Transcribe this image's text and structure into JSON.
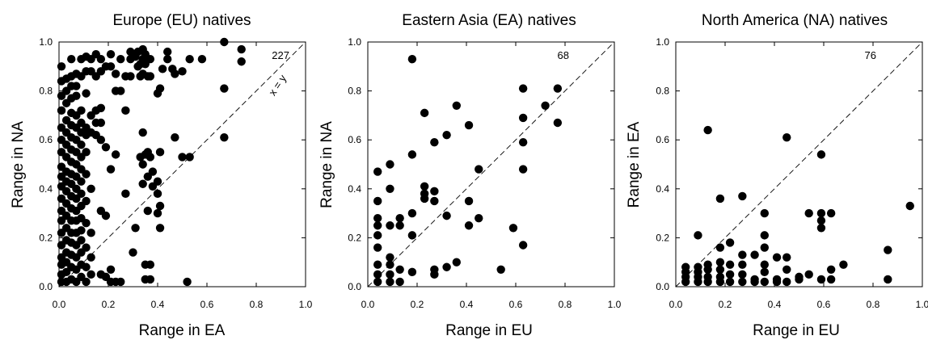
{
  "chart_data": [
    {
      "type": "scatter",
      "title": "Europe (EU) natives",
      "xlabel": "Range in EA",
      "ylabel": "Range in NA",
      "xlim": [
        0,
        1
      ],
      "ylim": [
        0,
        1
      ],
      "xticks": [
        "0.0",
        "0.2",
        "0.4",
        "0.6",
        "0.8",
        "1.0"
      ],
      "yticks": [
        "0.0",
        "0.2",
        "0.4",
        "0.6",
        "0.8",
        "1.0"
      ],
      "grid": false,
      "reference_line": "x = y",
      "reference_label": "x = y",
      "count_label": "227",
      "points": [
        [
          0.01,
          0.02
        ],
        [
          0.01,
          0.05
        ],
        [
          0.01,
          0.09
        ],
        [
          0.01,
          0.12
        ],
        [
          0.01,
          0.17
        ],
        [
          0.01,
          0.22
        ],
        [
          0.01,
          0.27
        ],
        [
          0.01,
          0.31
        ],
        [
          0.01,
          0.36
        ],
        [
          0.01,
          0.41
        ],
        [
          0.01,
          0.45
        ],
        [
          0.01,
          0.49
        ],
        [
          0.01,
          0.55
        ],
        [
          0.01,
          0.6
        ],
        [
          0.01,
          0.65
        ],
        [
          0.01,
          0.72
        ],
        [
          0.01,
          0.78
        ],
        [
          0.01,
          0.84
        ],
        [
          0.01,
          0.9
        ],
        [
          0.03,
          0.02
        ],
        [
          0.03,
          0.06
        ],
        [
          0.03,
          0.1
        ],
        [
          0.03,
          0.14
        ],
        [
          0.03,
          0.19
        ],
        [
          0.03,
          0.24
        ],
        [
          0.03,
          0.29
        ],
        [
          0.03,
          0.34
        ],
        [
          0.03,
          0.39
        ],
        [
          0.03,
          0.43
        ],
        [
          0.03,
          0.47
        ],
        [
          0.03,
          0.53
        ],
        [
          0.03,
          0.58
        ],
        [
          0.03,
          0.63
        ],
        [
          0.03,
          0.68
        ],
        [
          0.03,
          0.75
        ],
        [
          0.03,
          0.8
        ],
        [
          0.03,
          0.85
        ],
        [
          0.05,
          0.03
        ],
        [
          0.05,
          0.08
        ],
        [
          0.05,
          0.13
        ],
        [
          0.05,
          0.18
        ],
        [
          0.05,
          0.22
        ],
        [
          0.05,
          0.27
        ],
        [
          0.05,
          0.32
        ],
        [
          0.05,
          0.37
        ],
        [
          0.05,
          0.42
        ],
        [
          0.05,
          0.46
        ],
        [
          0.05,
          0.51
        ],
        [
          0.05,
          0.56
        ],
        [
          0.05,
          0.61
        ],
        [
          0.05,
          0.66
        ],
        [
          0.05,
          0.71
        ],
        [
          0.05,
          0.77
        ],
        [
          0.05,
          0.82
        ],
        [
          0.05,
          0.86
        ],
        [
          0.05,
          0.93
        ],
        [
          0.07,
          0.02
        ],
        [
          0.07,
          0.07
        ],
        [
          0.07,
          0.12
        ],
        [
          0.07,
          0.17
        ],
        [
          0.07,
          0.22
        ],
        [
          0.07,
          0.27
        ],
        [
          0.07,
          0.31
        ],
        [
          0.07,
          0.36
        ],
        [
          0.07,
          0.4
        ],
        [
          0.07,
          0.45
        ],
        [
          0.07,
          0.5
        ],
        [
          0.07,
          0.55
        ],
        [
          0.07,
          0.6
        ],
        [
          0.07,
          0.65
        ],
        [
          0.07,
          0.7
        ],
        [
          0.07,
          0.78
        ],
        [
          0.07,
          0.82
        ],
        [
          0.07,
          0.87
        ],
        [
          0.09,
          0.04
        ],
        [
          0.09,
          0.09
        ],
        [
          0.09,
          0.14
        ],
        [
          0.09,
          0.19
        ],
        [
          0.09,
          0.23
        ],
        [
          0.09,
          0.28
        ],
        [
          0.09,
          0.33
        ],
        [
          0.09,
          0.38
        ],
        [
          0.09,
          0.43
        ],
        [
          0.09,
          0.48
        ],
        [
          0.09,
          0.53
        ],
        [
          0.09,
          0.58
        ],
        [
          0.09,
          0.63
        ],
        [
          0.09,
          0.67
        ],
        [
          0.09,
          0.72
        ],
        [
          0.09,
          0.86
        ],
        [
          0.09,
          0.93
        ],
        [
          0.11,
          0.02
        ],
        [
          0.11,
          0.08
        ],
        [
          0.11,
          0.16
        ],
        [
          0.11,
          0.26
        ],
        [
          0.11,
          0.35
        ],
        [
          0.11,
          0.46
        ],
        [
          0.11,
          0.55
        ],
        [
          0.11,
          0.62
        ],
        [
          0.11,
          0.65
        ],
        [
          0.11,
          0.79
        ],
        [
          0.11,
          0.88
        ],
        [
          0.11,
          0.94
        ],
        [
          0.13,
          0.05
        ],
        [
          0.13,
          0.12
        ],
        [
          0.13,
          0.22
        ],
        [
          0.13,
          0.4
        ],
        [
          0.13,
          0.63
        ],
        [
          0.13,
          0.7
        ],
        [
          0.13,
          0.88
        ],
        [
          0.13,
          0.93
        ],
        [
          0.15,
          0.62
        ],
        [
          0.15,
          0.67
        ],
        [
          0.15,
          0.72
        ],
        [
          0.15,
          0.86
        ],
        [
          0.15,
          0.95
        ],
        [
          0.17,
          0.05
        ],
        [
          0.17,
          0.31
        ],
        [
          0.17,
          0.6
        ],
        [
          0.17,
          0.67
        ],
        [
          0.17,
          0.73
        ],
        [
          0.17,
          0.88
        ],
        [
          0.17,
          0.93
        ],
        [
          0.19,
          0.04
        ],
        [
          0.19,
          0.29
        ],
        [
          0.19,
          0.57
        ],
        [
          0.19,
          0.9
        ],
        [
          0.21,
          0.02
        ],
        [
          0.21,
          0.07
        ],
        [
          0.21,
          0.48
        ],
        [
          0.21,
          0.9
        ],
        [
          0.21,
          0.95
        ],
        [
          0.23,
          0.02
        ],
        [
          0.23,
          0.54
        ],
        [
          0.23,
          0.8
        ],
        [
          0.23,
          0.87
        ],
        [
          0.25,
          0.02
        ],
        [
          0.25,
          0.8
        ],
        [
          0.25,
          0.93
        ],
        [
          0.27,
          0.38
        ],
        [
          0.27,
          0.72
        ],
        [
          0.27,
          0.86
        ],
        [
          0.29,
          0.86
        ],
        [
          0.29,
          0.93
        ],
        [
          0.29,
          0.96
        ],
        [
          0.3,
          0.14
        ],
        [
          0.31,
          0.24
        ],
        [
          0.31,
          0.94
        ],
        [
          0.32,
          0.9
        ],
        [
          0.32,
          0.96
        ],
        [
          0.33,
          0.53
        ],
        [
          0.33,
          0.86
        ],
        [
          0.33,
          0.91
        ],
        [
          0.34,
          0.42
        ],
        [
          0.34,
          0.5
        ],
        [
          0.34,
          0.63
        ],
        [
          0.34,
          0.87
        ],
        [
          0.34,
          0.93
        ],
        [
          0.34,
          0.97
        ],
        [
          0.35,
          0.03
        ],
        [
          0.35,
          0.09
        ],
        [
          0.35,
          0.54
        ],
        [
          0.35,
          0.91
        ],
        [
          0.35,
          0.95
        ],
        [
          0.36,
          0.31
        ],
        [
          0.36,
          0.45
        ],
        [
          0.36,
          0.55
        ],
        [
          0.36,
          0.86
        ],
        [
          0.37,
          0.03
        ],
        [
          0.37,
          0.09
        ],
        [
          0.37,
          0.53
        ],
        [
          0.37,
          0.86
        ],
        [
          0.37,
          0.93
        ],
        [
          0.38,
          0.41
        ],
        [
          0.38,
          0.47
        ],
        [
          0.4,
          0.3
        ],
        [
          0.4,
          0.38
        ],
        [
          0.4,
          0.43
        ],
        [
          0.4,
          0.79
        ],
        [
          0.41,
          0.24
        ],
        [
          0.41,
          0.33
        ],
        [
          0.41,
          0.55
        ],
        [
          0.41,
          0.81
        ],
        [
          0.42,
          0.89
        ],
        [
          0.44,
          0.93
        ],
        [
          0.44,
          0.96
        ],
        [
          0.46,
          0.89
        ],
        [
          0.47,
          0.61
        ],
        [
          0.47,
          0.87
        ],
        [
          0.5,
          0.53
        ],
        [
          0.5,
          0.88
        ],
        [
          0.52,
          0.02
        ],
        [
          0.53,
          0.53
        ],
        [
          0.53,
          0.93
        ],
        [
          0.58,
          0.93
        ],
        [
          0.67,
          1.0
        ],
        [
          0.67,
          0.81
        ],
        [
          0.67,
          0.61
        ],
        [
          0.74,
          0.97
        ],
        [
          0.74,
          0.92
        ]
      ]
    },
    {
      "type": "scatter",
      "title": "Eastern Asia (EA) natives",
      "xlabel": "Range in EU",
      "ylabel": "Range in NA",
      "xlim": [
        0,
        1
      ],
      "ylim": [
        0,
        1
      ],
      "xticks": [
        "0.0",
        "0.2",
        "0.4",
        "0.6",
        "0.8",
        "1.0"
      ],
      "yticks": [
        "0.0",
        "0.2",
        "0.4",
        "0.6",
        "0.8",
        "1.0"
      ],
      "grid": false,
      "reference_line": "x = y",
      "count_label": "68",
      "points": [
        [
          0.04,
          0.02
        ],
        [
          0.04,
          0.05
        ],
        [
          0.04,
          0.09
        ],
        [
          0.04,
          0.16
        ],
        [
          0.04,
          0.21
        ],
        [
          0.04,
          0.25
        ],
        [
          0.04,
          0.28
        ],
        [
          0.04,
          0.35
        ],
        [
          0.04,
          0.47
        ],
        [
          0.09,
          0.02
        ],
        [
          0.09,
          0.05
        ],
        [
          0.09,
          0.09
        ],
        [
          0.09,
          0.12
        ],
        [
          0.09,
          0.25
        ],
        [
          0.09,
          0.4
        ],
        [
          0.09,
          0.5
        ],
        [
          0.13,
          0.02
        ],
        [
          0.13,
          0.07
        ],
        [
          0.13,
          0.25
        ],
        [
          0.13,
          0.28
        ],
        [
          0.18,
          0.06
        ],
        [
          0.18,
          0.21
        ],
        [
          0.18,
          0.3
        ],
        [
          0.18,
          0.54
        ],
        [
          0.18,
          0.93
        ],
        [
          0.23,
          0.36
        ],
        [
          0.23,
          0.38
        ],
        [
          0.23,
          0.41
        ],
        [
          0.23,
          0.71
        ],
        [
          0.27,
          0.05
        ],
        [
          0.27,
          0.07
        ],
        [
          0.27,
          0.35
        ],
        [
          0.27,
          0.39
        ],
        [
          0.27,
          0.59
        ],
        [
          0.32,
          0.08
        ],
        [
          0.32,
          0.29
        ],
        [
          0.32,
          0.62
        ],
        [
          0.36,
          0.1
        ],
        [
          0.36,
          0.74
        ],
        [
          0.41,
          0.25
        ],
        [
          0.41,
          0.35
        ],
        [
          0.41,
          0.66
        ],
        [
          0.45,
          0.28
        ],
        [
          0.45,
          0.48
        ],
        [
          0.54,
          0.07
        ],
        [
          0.59,
          0.24
        ],
        [
          0.63,
          0.17
        ],
        [
          0.63,
          0.48
        ],
        [
          0.63,
          0.59
        ],
        [
          0.63,
          0.69
        ],
        [
          0.63,
          0.81
        ],
        [
          0.72,
          0.74
        ],
        [
          0.77,
          0.67
        ],
        [
          0.77,
          0.81
        ]
      ]
    },
    {
      "type": "scatter",
      "title": "North America (NA) natives",
      "xlabel": "Range in EU",
      "ylabel": "Range in EA",
      "xlim": [
        0,
        1
      ],
      "ylim": [
        0,
        1
      ],
      "xticks": [
        "0.0",
        "0.2",
        "0.4",
        "0.6",
        "0.8",
        "1.0"
      ],
      "yticks": [
        "0.0",
        "0.2",
        "0.4",
        "0.6",
        "0.8",
        "1.0"
      ],
      "grid": false,
      "reference_line": "x = y",
      "count_label": "76",
      "points": [
        [
          0.04,
          0.02
        ],
        [
          0.04,
          0.04
        ],
        [
          0.04,
          0.06
        ],
        [
          0.04,
          0.08
        ],
        [
          0.09,
          0.02
        ],
        [
          0.09,
          0.04
        ],
        [
          0.09,
          0.06
        ],
        [
          0.09,
          0.08
        ],
        [
          0.09,
          0.21
        ],
        [
          0.13,
          0.02
        ],
        [
          0.13,
          0.04
        ],
        [
          0.13,
          0.07
        ],
        [
          0.13,
          0.09
        ],
        [
          0.13,
          0.64
        ],
        [
          0.18,
          0.02
        ],
        [
          0.18,
          0.04
        ],
        [
          0.18,
          0.07
        ],
        [
          0.18,
          0.1
        ],
        [
          0.18,
          0.16
        ],
        [
          0.18,
          0.36
        ],
        [
          0.22,
          0.02
        ],
        [
          0.22,
          0.05
        ],
        [
          0.22,
          0.09
        ],
        [
          0.22,
          0.18
        ],
        [
          0.27,
          0.02
        ],
        [
          0.27,
          0.05
        ],
        [
          0.27,
          0.09
        ],
        [
          0.27,
          0.13
        ],
        [
          0.27,
          0.37
        ],
        [
          0.32,
          0.02
        ],
        [
          0.32,
          0.03
        ],
        [
          0.32,
          0.13
        ],
        [
          0.36,
          0.02
        ],
        [
          0.36,
          0.06
        ],
        [
          0.36,
          0.09
        ],
        [
          0.36,
          0.16
        ],
        [
          0.36,
          0.21
        ],
        [
          0.36,
          0.3
        ],
        [
          0.41,
          0.02
        ],
        [
          0.41,
          0.03
        ],
        [
          0.41,
          0.12
        ],
        [
          0.45,
          0.02
        ],
        [
          0.45,
          0.07
        ],
        [
          0.45,
          0.12
        ],
        [
          0.45,
          0.61
        ],
        [
          0.5,
          0.03
        ],
        [
          0.5,
          0.04
        ],
        [
          0.54,
          0.05
        ],
        [
          0.54,
          0.3
        ],
        [
          0.59,
          0.03
        ],
        [
          0.59,
          0.24
        ],
        [
          0.59,
          0.27
        ],
        [
          0.59,
          0.3
        ],
        [
          0.59,
          0.54
        ],
        [
          0.63,
          0.03
        ],
        [
          0.63,
          0.07
        ],
        [
          0.63,
          0.3
        ],
        [
          0.68,
          0.09
        ],
        [
          0.86,
          0.03
        ],
        [
          0.86,
          0.15
        ],
        [
          0.95,
          0.33
        ]
      ]
    }
  ]
}
